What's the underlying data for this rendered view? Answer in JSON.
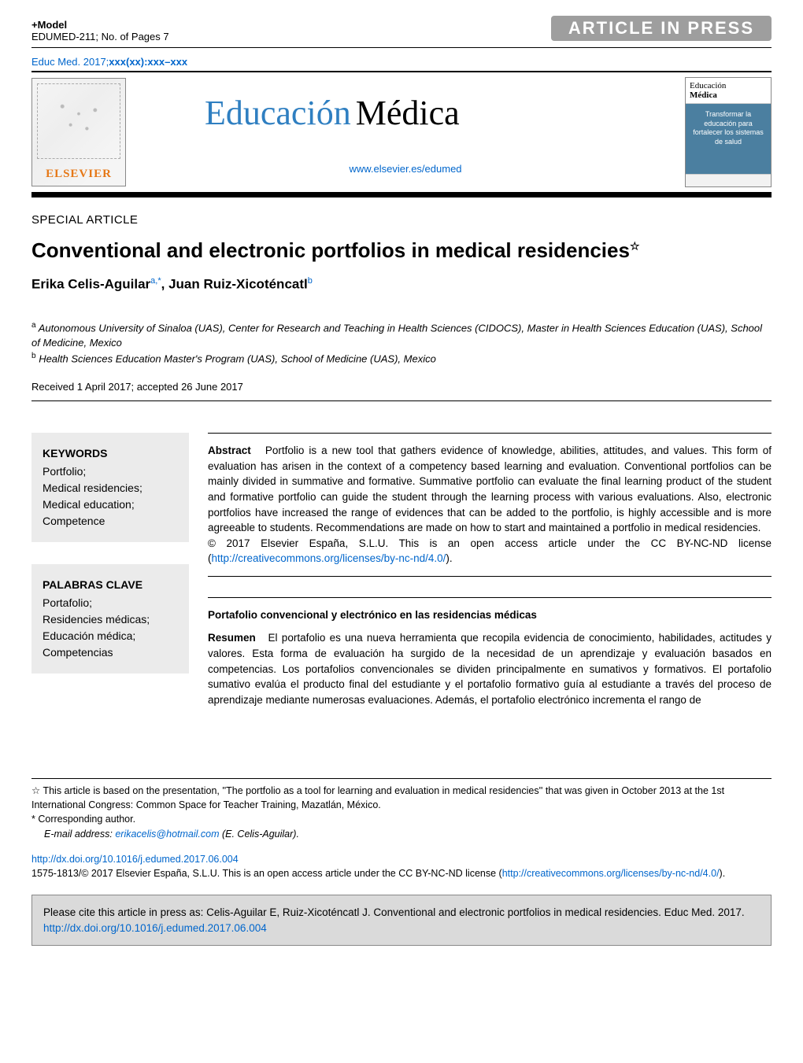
{
  "colors": {
    "link": "#0066cc",
    "elsevier_orange": "#e67817",
    "title_blue": "#2f7fc1",
    "aip_bg": "#9e9e9e",
    "kw_box_bg": "#ebebeb",
    "cite_box_bg": "#dadada",
    "cover_body_bg": "#4b7fa0"
  },
  "header": {
    "model_line": "+Model",
    "doc_id_line": "EDUMED-211;   No. of Pages 7",
    "aip_label": "ARTICLE IN PRESS",
    "citation_prefix": "Educ Med. 2017;",
    "citation_suffix": "xxx(xx):xxx–xxx"
  },
  "masthead": {
    "elsevier_brand": "ELSEVIER",
    "journal_title_1": "Educación",
    "journal_title_2": "Médica",
    "journal_url_label": "www.elsevier.es/edumed",
    "cover_head_1": "Educación",
    "cover_head_2": "Médica",
    "cover_body": "Transformar la educación para fortalecer los sistemas de salud"
  },
  "article": {
    "section_label": "SPECIAL ARTICLE",
    "title": "Conventional and electronic portfolios in medical residencies",
    "star_glyph": "☆",
    "authors_html_parts": {
      "a1_name": "Erika Celis-Aguilar",
      "a1_sup": "a,*",
      "sep": ", ",
      "a2_name": "Juan Ruiz-Xicoténcatl",
      "a2_sup": "b"
    },
    "affiliations": {
      "a": "Autonomous University of Sinaloa (UAS), Center for Research and Teaching in Health Sciences (CIDOCS), Master in Health Sciences Education (UAS), School of Medicine, Mexico",
      "b": "Health Sciences Education Master's Program (UAS), School of Medicine (UAS), Mexico"
    },
    "dates": "Received 1 April 2017; accepted 26 June 2017"
  },
  "keywords_en": {
    "title": "KEYWORDS",
    "items": "Portfolio;\nMedical residencies;\nMedical education;\nCompetence"
  },
  "keywords_es": {
    "title": "PALABRAS CLAVE",
    "items": "Portafolio;\nResidencies médicas;\nEducación médica;\nCompetencias"
  },
  "abstract_en": {
    "label": "Abstract",
    "text": "Portfolio is a new tool that gathers evidence of knowledge, abilities, attitudes, and values. This form of evaluation has arisen in the context of a competency based learning and evaluation. Conventional portfolios can be mainly divided in summative and formative. Summative portfolio can evaluate the final learning product of the student and formative portfolio can guide the student through the learning process with various evaluations. Also, electronic portfolios have increased the range of evidences that can be added to the portfolio, is highly accessible and is more agreeable to students. Recommendations are made on how to start and maintained a portfolio in medical residencies.",
    "copyright": "© 2017 Elsevier España, S.L.U. This is an open access article under the CC BY-NC-ND license (",
    "license_url": "http://creativecommons.org/licenses/by-nc-nd/4.0/",
    "copyright_close": ")."
  },
  "abstract_es": {
    "subtitle": "Portafolio convencional y electrónico en las residencias médicas",
    "label": "Resumen",
    "text": "El portafolio es una nueva herramienta que recopila evidencia de conocimiento, habilidades, actitudes y valores. Esta forma de evaluación ha surgido de la necesidad de un aprendizaje y evaluación basados en competencias. Los portafolios convencionales se dividen principalmente en sumativos y formativos. El portafolio sumativo evalúa el producto final del estudiante y el portafolio formativo guía al estudiante a través del proceso de aprendizaje mediante numerosas evaluaciones. Además, el portafolio electrónico incrementa el rango de"
  },
  "footnotes": {
    "star": "This article is based on the presentation, ''The portfolio as a tool for learning and evaluation in medical residencies'' that was given in October 2013 at the 1st International Congress: Common Space for Teacher Training, Mazatlán, México.",
    "corr": "Corresponding author.",
    "email_label": "E-mail address:",
    "email": "erikacelis@hotmail.com",
    "email_paren": "(E. Celis-Aguilar)."
  },
  "doi": {
    "url": "http://dx.doi.org/10.1016/j.edumed.2017.06.004",
    "line2a": "1575-1813/© 2017 Elsevier España, S.L.U. This is an open access article under the CC BY-NC-ND license (",
    "line2_url": "http://creativecommons.org/licenses/by-nc-nd/4.0/",
    "line2b": ")."
  },
  "cite_box": {
    "text_a": "Please cite this article in press as: Celis-Aguilar E, Ruiz-Xicoténcatl J. Conventional and electronic portfolios in medical residencies. Educ Med. 2017. ",
    "url": "http://dx.doi.org/10.1016/j.edumed.2017.06.004"
  }
}
